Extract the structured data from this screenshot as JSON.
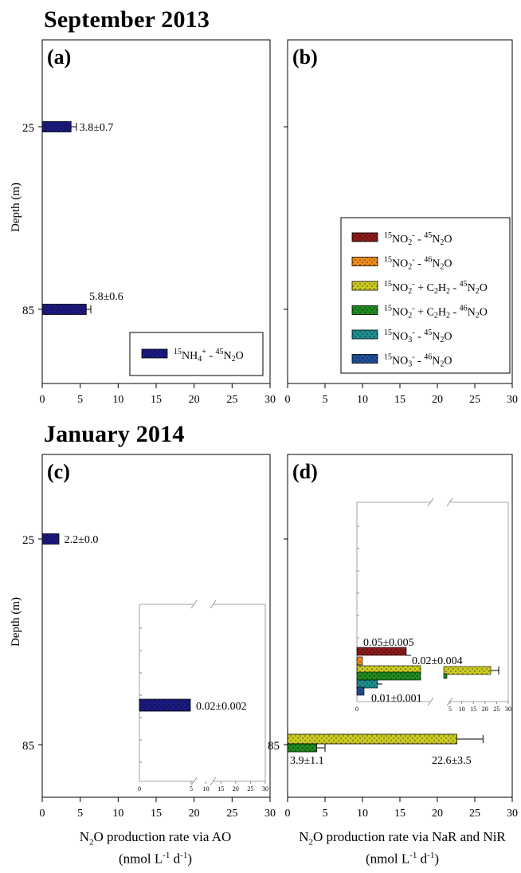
{
  "sections": {
    "top_title": "September 2013",
    "bottom_title": "January 2014"
  },
  "colors": {
    "ao_navy": "#1a1a80",
    "nar_no2_45": "#8b1a1a",
    "nar_no2_46": "#f28c1e",
    "nar_c2h2_45": "#cccc22",
    "nar_c2h2_46": "#1f8a1f",
    "nar_no3_45": "#1e8f8f",
    "nar_no3_46": "#1f4f9a"
  },
  "legends": {
    "a": [
      {
        "sup1": "15",
        "base1": "NH",
        "sub1": "4",
        "sup2": "+",
        "mid": " - ",
        "sup3": "45",
        "base2": "N",
        "sub2": "2",
        "tail": "O",
        "color": "#1a1a80"
      }
    ],
    "b": [
      {
        "sup1": "15",
        "base1": "NO",
        "sub1": "2",
        "sup2": "-",
        "mid": " - ",
        "sup3": "45",
        "base2": "N",
        "sub2": "2",
        "tail": "O",
        "color": "#8b1a1a"
      },
      {
        "sup1": "15",
        "base1": "NO",
        "sub1": "2",
        "sup2": "-",
        "mid": " - ",
        "sup3": "46",
        "base2": "N",
        "sub2": "2",
        "tail": "O",
        "color": "#f28c1e"
      },
      {
        "sup1": "15",
        "base1": "NO",
        "sub1": "2",
        "sup2": "-",
        "mid": " + C",
        "sub_mid": "2",
        "mid2": "H",
        "sub_mid2": "2",
        "mid3": " - ",
        "sup3": "45",
        "base2": "N",
        "sub2": "2",
        "tail": "O",
        "color": "#cccc22"
      },
      {
        "sup1": "15",
        "base1": "NO",
        "sub1": "2",
        "sup2": "-",
        "mid": " + C",
        "sub_mid": "2",
        "mid2": "H",
        "sub_mid2": "2",
        "mid3": " - ",
        "sup3": "46",
        "base2": "N",
        "sub2": "2",
        "tail": "O",
        "color": "#1f8a1f"
      },
      {
        "sup1": "15",
        "base1": "NO",
        "sub1": "3",
        "sup2": "-",
        "mid": " - ",
        "sup3": "45",
        "base2": "N",
        "sub2": "2",
        "tail": "O",
        "color": "#1e8f8f"
      },
      {
        "sup1": "15",
        "base1": "NO",
        "sub1": "3",
        "sup2": "-",
        "mid": " - ",
        "sup3": "46",
        "base2": "N",
        "sub2": "2",
        "tail": "O",
        "color": "#1f4f9a"
      }
    ]
  },
  "axis_text": {
    "ylabel": "Depth (m)",
    "xlabel_left_main": "N",
    "xlabel_left_sub": "2",
    "xlabel_left_rest": "O production rate via AO",
    "xlabel_right_rest": "O production rate via NaR and NiR",
    "units_pre": "(nmol L",
    "units_sup1": "-1",
    "units_mid": " d",
    "units_sup2": "-1",
    "units_post": ")"
  },
  "chart_data": [
    {
      "panel": "(a)",
      "type": "bar",
      "orientation": "horizontal",
      "categories": [
        "25",
        "85"
      ],
      "xlim": [
        0,
        30
      ],
      "xticks": [
        0,
        5,
        10,
        15,
        20,
        25,
        30
      ],
      "series": [
        {
          "name": "15NH4+ - 45N2O",
          "values": [
            3.8,
            5.8
          ],
          "errors": [
            0.7,
            0.6
          ],
          "labels": [
            "3.8±0.7",
            "5.8±0.6"
          ]
        }
      ]
    },
    {
      "panel": "(b)",
      "type": "bar",
      "orientation": "horizontal",
      "categories": [
        "25",
        "85"
      ],
      "xlim": [
        0,
        30
      ],
      "xticks": [
        0,
        5,
        10,
        15,
        20,
        25,
        30
      ],
      "series": [
        {
          "name": "15NO2- - 45N2O",
          "values": [
            0,
            0
          ]
        },
        {
          "name": "15NO2- - 46N2O",
          "values": [
            0,
            0
          ]
        },
        {
          "name": "15NO2- + C2H2 - 45N2O",
          "values": [
            0,
            0
          ]
        },
        {
          "name": "15NO2- + C2H2 - 46N2O",
          "values": [
            0,
            0
          ]
        },
        {
          "name": "15NO3- - 45N2O",
          "values": [
            0,
            0
          ]
        },
        {
          "name": "15NO3- - 46N2O",
          "values": [
            0,
            0
          ]
        }
      ]
    },
    {
      "panel": "(c)",
      "type": "bar",
      "orientation": "horizontal",
      "categories": [
        "25",
        "85"
      ],
      "xlim": [
        0,
        30
      ],
      "xticks": [
        0,
        5,
        10,
        15,
        20,
        25,
        30
      ],
      "series": [
        {
          "name": "15NH4+ - 45N2O",
          "values": [
            2.2,
            0.02
          ],
          "errors": [
            0.0,
            0.002
          ],
          "labels": [
            "2.2±0.0",
            "0.02±0.002"
          ]
        }
      ],
      "inset": {
        "xticks": [
          "0",
          "5",
          "10",
          "15",
          "20",
          "25",
          "30"
        ],
        "values": [
          0.02
        ],
        "label": "0.02±0.002"
      }
    },
    {
      "panel": "(d)",
      "type": "bar",
      "orientation": "horizontal",
      "categories": [
        "25",
        "85"
      ],
      "xlim": [
        0,
        30
      ],
      "xticks": [
        0,
        5,
        10,
        15,
        20,
        25,
        30
      ],
      "series": [
        {
          "name": "15NO2- - 45N2O",
          "values": [
            0,
            0.05
          ],
          "labels": [
            "",
            "0.05±0.005"
          ]
        },
        {
          "name": "15NO2- - 46N2O",
          "values": [
            0,
            0.005
          ]
        },
        {
          "name": "15NO2- + C2H2 - 45N2O",
          "values": [
            0,
            22.6
          ],
          "errors": [
            0,
            3.5
          ],
          "labels": [
            "",
            "22.6±3.5"
          ]
        },
        {
          "name": "15NO2- + C2H2 - 46N2O",
          "values": [
            0,
            3.9
          ],
          "errors": [
            0,
            1.1
          ],
          "labels": [
            "",
            "3.9±1.1"
          ]
        },
        {
          "name": "15NO3- - 45N2O",
          "values": [
            0,
            0.02
          ],
          "labels": [
            "",
            "0.02±0.004"
          ]
        },
        {
          "name": "15NO3- - 46N2O",
          "values": [
            0,
            0.01
          ],
          "labels": [
            "",
            "0.01±0.001"
          ]
        }
      ],
      "inset": {
        "xticks": [
          "0",
          "5",
          "10",
          "15",
          "20",
          "25",
          "30"
        ]
      }
    }
  ]
}
